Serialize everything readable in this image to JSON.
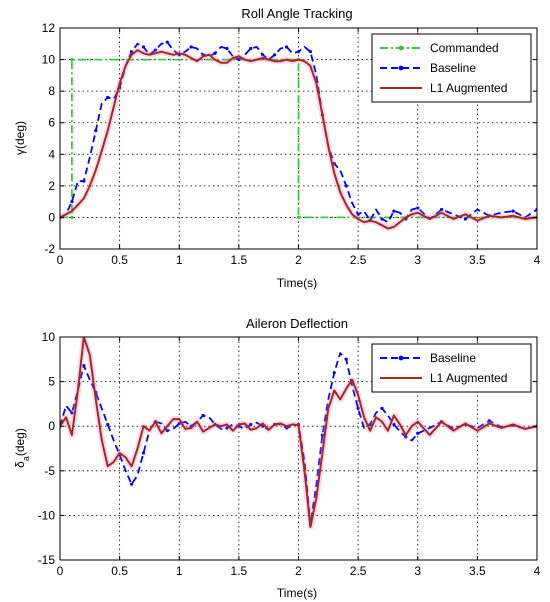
{
  "chart_data": [
    {
      "type": "line",
      "title": "Roll Angle Tracking",
      "xlabel": "Time(s)",
      "ylabel_main": "γ",
      "ylabel_sub": "",
      "ylabel_unit": "(deg)",
      "xlim": [
        0,
        4
      ],
      "ylim": [
        -2,
        12
      ],
      "xticks": [
        0,
        0.5,
        1,
        1.5,
        2,
        2.5,
        3,
        3.5,
        4
      ],
      "xtick_labels": [
        "0",
        "0.5",
        "1",
        "1.5",
        "2",
        "2.5",
        "3",
        "3.5",
        "4"
      ],
      "yticks": [
        -2,
        0,
        2,
        4,
        6,
        8,
        10,
        12
      ],
      "ytick_labels": [
        "-2",
        "0",
        "2",
        "4",
        "6",
        "8",
        "10",
        "12"
      ],
      "grid": true,
      "legend_position": "top-right",
      "series": [
        {
          "name": "Commanded",
          "color": "#33cc33",
          "style": "dashdot",
          "marker": "dot",
          "x": [
            0,
            0.1,
            0.1,
            2.0,
            2.0,
            4.0
          ],
          "y": [
            0,
            0,
            10,
            10,
            0,
            0
          ]
        },
        {
          "name": "Baseline",
          "color": "#0000ff",
          "style": "dashed",
          "marker": "dot",
          "x": [
            0,
            0.05,
            0.1,
            0.15,
            0.2,
            0.25,
            0.3,
            0.35,
            0.4,
            0.45,
            0.5,
            0.55,
            0.6,
            0.65,
            0.7,
            0.75,
            0.8,
            0.85,
            0.9,
            0.95,
            1.0,
            1.05,
            1.1,
            1.15,
            1.2,
            1.25,
            1.3,
            1.35,
            1.4,
            1.45,
            1.5,
            1.55,
            1.6,
            1.65,
            1.7,
            1.75,
            1.8,
            1.85,
            1.9,
            1.95,
            2.0,
            2.05,
            2.1,
            2.15,
            2.2,
            2.25,
            2.3,
            2.35,
            2.4,
            2.45,
            2.5,
            2.55,
            2.6,
            2.65,
            2.7,
            2.75,
            2.8,
            2.85,
            2.9,
            2.95,
            3.0,
            3.1,
            3.2,
            3.3,
            3.4,
            3.5,
            3.6,
            3.7,
            3.8,
            3.9,
            4.0
          ],
          "y": [
            0,
            0.2,
            1.0,
            2.3,
            2.3,
            3.8,
            5.5,
            7.2,
            7.6,
            7.5,
            8.2,
            9.6,
            10.5,
            11.0,
            10.8,
            10.3,
            10.6,
            11.0,
            11.1,
            10.6,
            10.3,
            10.5,
            10.8,
            10.7,
            10.3,
            10.2,
            10.4,
            10.8,
            10.7,
            10.2,
            10.0,
            10.3,
            10.7,
            10.8,
            10.3,
            10.0,
            10.3,
            10.7,
            10.8,
            10.4,
            10.5,
            10.8,
            10.5,
            9.0,
            6.5,
            4.5,
            3.4,
            3.0,
            2.0,
            0.9,
            0.2,
            0.4,
            -0.2,
            0.5,
            -0.1,
            -0.3,
            0.4,
            0.3,
            -0.1,
            0.5,
            0.6,
            -0.1,
            0.5,
            0.2,
            -0.1,
            0.5,
            0.1,
            0.3,
            0.4,
            0.0,
            0.5
          ]
        },
        {
          "name": "L1 Augmented",
          "color": "#a52a1a",
          "style": "solid",
          "marker": "none",
          "x": [
            0,
            0.05,
            0.1,
            0.15,
            0.2,
            0.25,
            0.3,
            0.35,
            0.4,
            0.45,
            0.5,
            0.55,
            0.6,
            0.65,
            0.7,
            0.75,
            0.8,
            0.85,
            0.9,
            0.95,
            1.0,
            1.05,
            1.1,
            1.15,
            1.2,
            1.25,
            1.3,
            1.35,
            1.4,
            1.45,
            1.5,
            1.55,
            1.6,
            1.65,
            1.7,
            1.75,
            1.8,
            1.85,
            1.9,
            1.95,
            2.0,
            2.05,
            2.1,
            2.15,
            2.2,
            2.25,
            2.3,
            2.35,
            2.4,
            2.45,
            2.5,
            2.55,
            2.6,
            2.65,
            2.7,
            2.75,
            2.8,
            2.85,
            2.9,
            2.95,
            3.0,
            3.1,
            3.2,
            3.3,
            3.4,
            3.5,
            3.6,
            3.7,
            3.8,
            3.9,
            4.0
          ],
          "y": [
            0,
            0.2,
            0.4,
            0.8,
            1.2,
            2.0,
            3.0,
            4.2,
            5.5,
            7.0,
            8.5,
            9.6,
            10.3,
            10.6,
            10.4,
            10.3,
            10.4,
            10.5,
            10.4,
            10.3,
            10.4,
            10.3,
            10.1,
            9.9,
            10.2,
            10.3,
            10.0,
            9.8,
            9.8,
            10.1,
            10.2,
            10.0,
            9.9,
            10.0,
            10.1,
            10.0,
            9.9,
            9.9,
            10.0,
            9.9,
            10.0,
            9.9,
            9.6,
            8.5,
            6.5,
            4.5,
            2.8,
            1.6,
            0.8,
            0.2,
            -0.1,
            -0.3,
            -0.2,
            -0.3,
            -0.5,
            -0.7,
            -0.6,
            -0.3,
            0.0,
            0.2,
            0.3,
            -0.1,
            0.3,
            -0.1,
            0.2,
            -0.2,
            0.1,
            0.0,
            0.1,
            -0.1,
            0.0
          ]
        }
      ]
    },
    {
      "type": "line",
      "title": "Aileron Deflection",
      "xlabel": "Time(s)",
      "ylabel_main": "δ",
      "ylabel_sub": "a",
      "ylabel_unit": "(deg)",
      "xlim": [
        0,
        4
      ],
      "ylim": [
        -15,
        10
      ],
      "xticks": [
        0,
        0.5,
        1,
        1.5,
        2,
        2.5,
        3,
        3.5,
        4
      ],
      "xtick_labels": [
        "0",
        "0.5",
        "1",
        "1.5",
        "2",
        "2.5",
        "3",
        "3.5",
        "4"
      ],
      "yticks": [
        -15,
        -10,
        -5,
        0,
        5,
        10
      ],
      "ytick_labels": [
        "-15",
        "-10",
        "-5",
        "0",
        "5",
        "10"
      ],
      "grid": true,
      "legend_position": "top-right",
      "series": [
        {
          "name": "Baseline",
          "color": "#0000ff",
          "style": "dashed",
          "marker": "dot",
          "x": [
            0,
            0.05,
            0.1,
            0.15,
            0.2,
            0.25,
            0.3,
            0.35,
            0.4,
            0.45,
            0.5,
            0.55,
            0.6,
            0.65,
            0.7,
            0.75,
            0.8,
            0.85,
            0.9,
            0.95,
            1.0,
            1.05,
            1.1,
            1.15,
            1.2,
            1.25,
            1.3,
            1.35,
            1.4,
            1.45,
            1.5,
            1.55,
            1.6,
            1.65,
            1.7,
            1.75,
            1.8,
            1.85,
            1.9,
            1.95,
            2.0,
            2.05,
            2.1,
            2.15,
            2.2,
            2.25,
            2.3,
            2.35,
            2.4,
            2.45,
            2.5,
            2.55,
            2.6,
            2.65,
            2.7,
            2.75,
            2.8,
            2.85,
            2.9,
            2.95,
            3.0,
            3.1,
            3.2,
            3.3,
            3.4,
            3.5,
            3.6,
            3.7,
            3.8,
            3.9,
            4.0
          ],
          "y": [
            0,
            2.3,
            1.5,
            4.0,
            6.8,
            5.2,
            3.8,
            2.0,
            0.2,
            -1.6,
            -3.2,
            -5.0,
            -6.5,
            -5.5,
            -3.0,
            -0.5,
            0.5,
            0.3,
            -0.5,
            -0.3,
            0.3,
            0.5,
            0.0,
            0.5,
            1.2,
            1.0,
            0.2,
            -0.3,
            -0.2,
            0.2,
            0.0,
            -0.3,
            0.2,
            0.4,
            0.0,
            -0.4,
            0.2,
            0.2,
            -0.2,
            0.0,
            0.2,
            -4.0,
            -11.0,
            -6.5,
            -1.0,
            3.0,
            6.0,
            8.2,
            7.5,
            4.5,
            2.0,
            -0.2,
            0.2,
            1.5,
            2.0,
            1.2,
            0.2,
            -0.6,
            -1.2,
            -1.6,
            -0.8,
            -0.2,
            0.5,
            -0.3,
            0.2,
            -0.2,
            0.6,
            -0.1,
            0.1,
            -0.3,
            0.0
          ]
        },
        {
          "name": "L1 Augmented",
          "color": "#a52a1a",
          "style": "solid",
          "marker": "none",
          "x": [
            0,
            0.05,
            0.1,
            0.15,
            0.2,
            0.25,
            0.3,
            0.35,
            0.4,
            0.45,
            0.5,
            0.55,
            0.6,
            0.65,
            0.7,
            0.75,
            0.8,
            0.85,
            0.9,
            0.95,
            1.0,
            1.05,
            1.1,
            1.15,
            1.2,
            1.25,
            1.3,
            1.35,
            1.4,
            1.45,
            1.5,
            1.55,
            1.6,
            1.65,
            1.7,
            1.75,
            1.8,
            1.85,
            1.9,
            1.95,
            2.0,
            2.05,
            2.1,
            2.15,
            2.2,
            2.25,
            2.3,
            2.35,
            2.4,
            2.45,
            2.5,
            2.55,
            2.6,
            2.65,
            2.7,
            2.75,
            2.8,
            2.85,
            2.9,
            2.95,
            3.0,
            3.1,
            3.2,
            3.3,
            3.4,
            3.5,
            3.6,
            3.7,
            3.8,
            3.9,
            4.0
          ],
          "y": [
            0,
            1.0,
            -1.0,
            4.0,
            10.0,
            8.0,
            3.0,
            -1.5,
            -4.5,
            -4.0,
            -3.0,
            -3.5,
            -4.5,
            -2.5,
            0.0,
            -0.5,
            0.5,
            -0.8,
            0.0,
            0.8,
            0.8,
            -0.3,
            -0.2,
            0.5,
            -0.6,
            -0.2,
            0.2,
            0.0,
            0.2,
            -0.5,
            0.2,
            0.3,
            -0.4,
            -0.2,
            0.3,
            -0.4,
            0.2,
            0.3,
            0.0,
            0.2,
            0.1,
            -5.0,
            -11.3,
            -8.0,
            -3.0,
            2.0,
            4.0,
            3.0,
            4.2,
            5.2,
            3.5,
            1.0,
            -0.5,
            1.0,
            0.5,
            -0.5,
            1.2,
            0.2,
            -1.0,
            0.0,
            0.5,
            -1.0,
            0.5,
            -0.5,
            0.3,
            -0.5,
            0.3,
            -0.2,
            0.2,
            -0.3,
            0.0
          ]
        }
      ]
    }
  ]
}
